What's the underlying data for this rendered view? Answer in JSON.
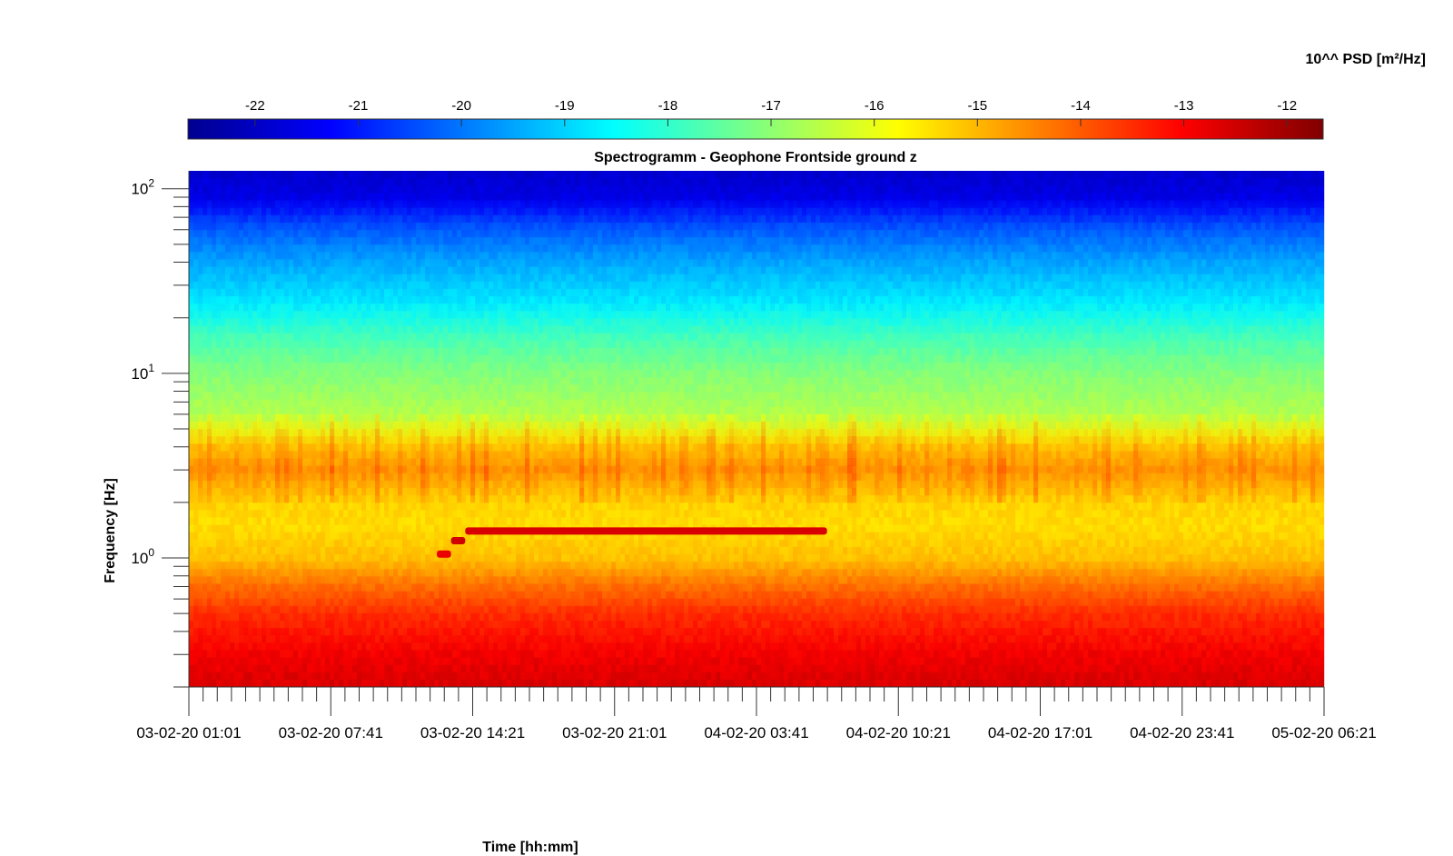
{
  "chart_data": {
    "type": "heatmap",
    "title": "Spectrogramm - Geophone Frontside ground z",
    "xlabel": "Time [hh:mm]",
    "ylabel": "Frequency [Hz]",
    "y_scale": "log",
    "ylim_hz": [
      0.2,
      125
    ],
    "y_ticks": [
      {
        "value": 1,
        "base": "10",
        "exp": "0"
      },
      {
        "value": 10,
        "base": "10",
        "exp": "1"
      },
      {
        "value": 100,
        "base": "10",
        "exp": "2"
      }
    ],
    "x_tick_labels": [
      "03-02-20 01:01",
      "03-02-20 07:41",
      "03-02-20 14:21",
      "03-02-20 21:01",
      "04-02-20 03:41",
      "04-02-20 10:21",
      "04-02-20 17:01",
      "04-02-20 23:41",
      "05-02-20 06:21"
    ],
    "x_minor_ticks_per_interval": 10,
    "colorbar": {
      "label": "10^^ PSD [m²/Hz]",
      "ticks": [
        "-22",
        "-21",
        "-20",
        "-19",
        "-18",
        "-17",
        "-16",
        "-15",
        "-14",
        "-13",
        "-12"
      ],
      "range": [
        -22.65,
        -11.65
      ],
      "colormap": "jet",
      "placement": "top"
    },
    "spectral_profile": [
      {
        "freq_hz": 0.2,
        "log10_psd": -12.6
      },
      {
        "freq_hz": 0.3,
        "log10_psd": -12.9
      },
      {
        "freq_hz": 0.5,
        "log10_psd": -13.5
      },
      {
        "freq_hz": 0.7,
        "log10_psd": -14.2
      },
      {
        "freq_hz": 1.0,
        "log10_psd": -15.1
      },
      {
        "freq_hz": 1.5,
        "log10_psd": -15.4
      },
      {
        "freq_hz": 2.0,
        "log10_psd": -15.3
      },
      {
        "freq_hz": 3.0,
        "log10_psd": -14.6
      },
      {
        "freq_hz": 4.0,
        "log10_psd": -15.1
      },
      {
        "freq_hz": 6.0,
        "log10_psd": -16.6
      },
      {
        "freq_hz": 10.0,
        "log10_psd": -17.1
      },
      {
        "freq_hz": 15.0,
        "log10_psd": -17.7
      },
      {
        "freq_hz": 25.0,
        "log10_psd": -18.8
      },
      {
        "freq_hz": 40.0,
        "log10_psd": -19.5
      },
      {
        "freq_hz": 60.0,
        "log10_psd": -20.3
      },
      {
        "freq_hz": 90.0,
        "log10_psd": -21.6
      },
      {
        "freq_hz": 125.0,
        "log10_psd": -21.9
      }
    ],
    "annotations": [
      {
        "description": "narrow-band line",
        "freq_hz": 1.05,
        "time_start": "03-02-20 12:40",
        "time_end": "03-02-20 13:20",
        "log10_psd": -12.8
      },
      {
        "description": "narrow-band line",
        "freq_hz": 1.24,
        "time_start": "03-02-20 13:20",
        "time_end": "03-02-20 14:00",
        "log10_psd": -12.5
      },
      {
        "description": "narrow-band line",
        "freq_hz": 1.4,
        "time_start": "03-02-20 14:00",
        "time_end": "04-02-20 07:00",
        "log10_psd": -12.6
      }
    ],
    "colors": {
      "jet_stops": [
        "#00008f",
        "#0000ff",
        "#00ffff",
        "#ffff00",
        "#ff0000",
        "#800000"
      ]
    }
  }
}
